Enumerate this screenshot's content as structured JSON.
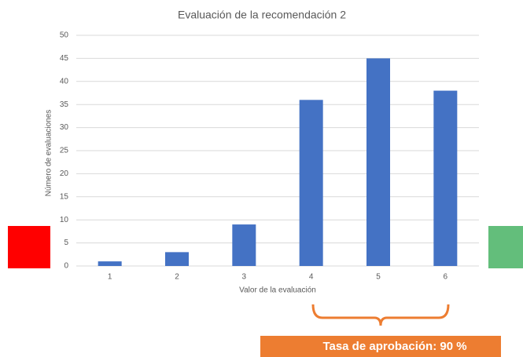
{
  "chart_data": {
    "type": "bar",
    "title": "Evaluación de la recomendación 2",
    "x_label": "Valor de la evaluación",
    "y_label": "Número de evaluaciones",
    "categories": [
      "1",
      "2",
      "3",
      "4",
      "5",
      "6"
    ],
    "values": [
      1,
      3,
      9,
      36,
      45,
      38
    ],
    "color": "#4472c4",
    "ylim": [
      0,
      50
    ],
    "yticks": [
      0,
      5,
      10,
      15,
      20,
      25,
      30,
      35,
      40,
      45,
      50
    ],
    "grid": true,
    "annotation": "Tasa de aprobación: 90 %"
  }
}
